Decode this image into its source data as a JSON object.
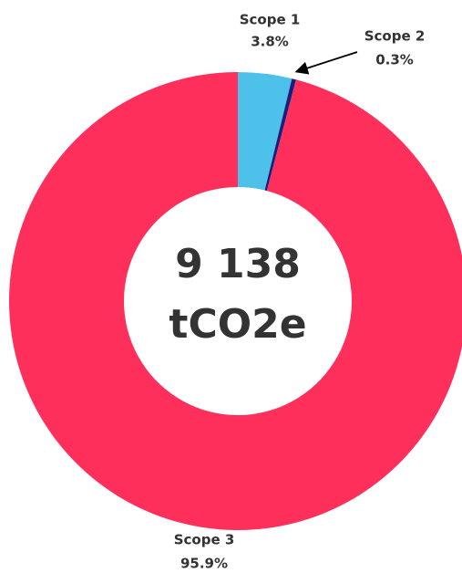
{
  "chart_data": {
    "type": "donut",
    "center_text": [
      "9 138",
      "tCO2e"
    ],
    "categories": [
      "Scope 1",
      "Scope 2",
      "Scope 3"
    ],
    "values": [
      3.8,
      0.3,
      95.9
    ],
    "value_labels": [
      "3.8%",
      "0.3%",
      "95.9%"
    ],
    "colors": [
      "#4dc1ea",
      "#1b1f7a",
      "#ff2f5b"
    ]
  }
}
